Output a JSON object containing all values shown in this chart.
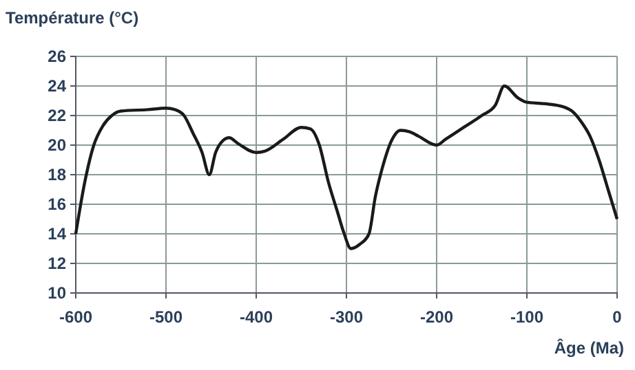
{
  "chart_data": {
    "type": "line",
    "ylabel": "Température (°C)",
    "xlabel": "Âge (Ma)",
    "x": [
      -600,
      -590,
      -580,
      -570,
      -560,
      -550,
      -520,
      -500,
      -490,
      -480,
      -470,
      -460,
      -452,
      -445,
      -437,
      -430,
      -420,
      -400,
      -390,
      -370,
      -350,
      -340,
      -330,
      -320,
      -310,
      -303,
      -295,
      -285,
      -275,
      -268,
      -260,
      -250,
      -240,
      -230,
      -220,
      -200,
      -190,
      -170,
      -150,
      -135,
      -125,
      -110,
      -100,
      -80,
      -60,
      -50,
      -40,
      -30,
      -20,
      -10,
      0
    ],
    "series": [
      {
        "color": "#1a1a1a",
        "values": [
          14,
          17.5,
          20,
          21.3,
          22,
          22.3,
          22.4,
          22.5,
          22.4,
          22,
          20.8,
          19.5,
          18,
          19.5,
          20.3,
          20.5,
          20.1,
          19.5,
          19.6,
          20.4,
          21.2,
          21.1,
          20,
          17.5,
          15.5,
          14.1,
          13,
          13.3,
          14,
          16.5,
          18.5,
          20.3,
          21,
          20.9,
          20.6,
          20,
          20.4,
          21.2,
          22,
          22.7,
          24,
          23.2,
          22.9,
          22.8,
          22.6,
          22.3,
          21.6,
          20.6,
          19,
          17,
          15
        ]
      }
    ],
    "xlim": [
      -600,
      0
    ],
    "xticks": [
      -600,
      -500,
      -400,
      -300,
      -200,
      -100,
      0
    ],
    "ylim": [
      10,
      26
    ],
    "yticks": [
      10,
      12,
      14,
      16,
      18,
      20,
      22,
      24,
      26
    ],
    "grid": true,
    "marker": "none",
    "line_style": "solid"
  }
}
